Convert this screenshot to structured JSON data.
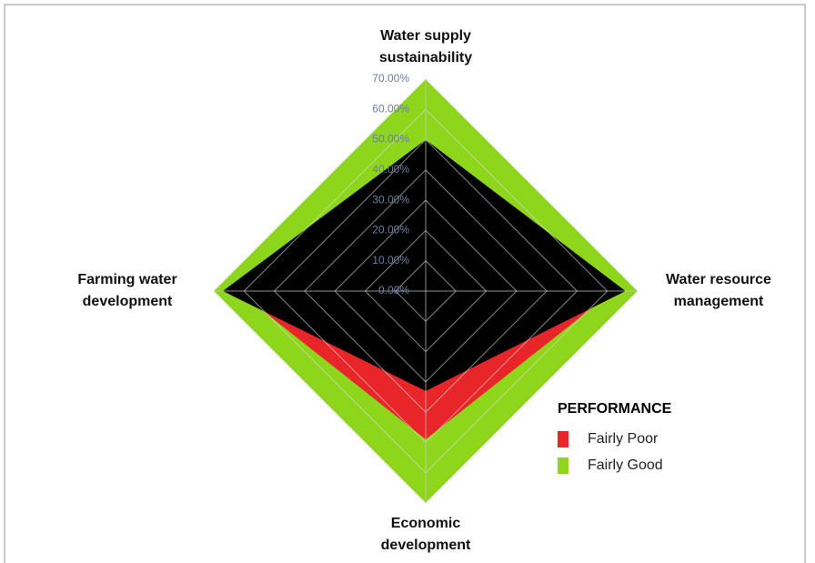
{
  "chart_data": {
    "type": "radar",
    "categories": [
      "Water supply sustainability",
      "Water resource management",
      "Economic development",
      "Farming water development"
    ],
    "series": [
      {
        "name": "Fairly Good",
        "color": "#8ed61c",
        "values": [
          70,
          70,
          70,
          70
        ]
      },
      {
        "name": "Fairly Poor",
        "color": "#e8262a",
        "values": [
          45,
          62,
          49,
          62
        ]
      },
      {
        "color": "#000000",
        "values": [
          50,
          66,
          33,
          67
        ]
      }
    ],
    "ylim": [
      0,
      70
    ],
    "yticks": [
      {
        "value": 0,
        "label": "0.00%"
      },
      {
        "value": 10,
        "label": "10.00%"
      },
      {
        "value": 20,
        "label": "20.00%"
      },
      {
        "value": 30,
        "label": "30.00%"
      },
      {
        "value": 40,
        "label": "40.00%"
      },
      {
        "value": 50,
        "label": "50.00%"
      },
      {
        "value": 60,
        "label": "60.00%"
      },
      {
        "value": 70,
        "label": "70.00%"
      }
    ],
    "grid": true,
    "legend_title": "PERFORMANCE",
    "legend": "lower right"
  }
}
